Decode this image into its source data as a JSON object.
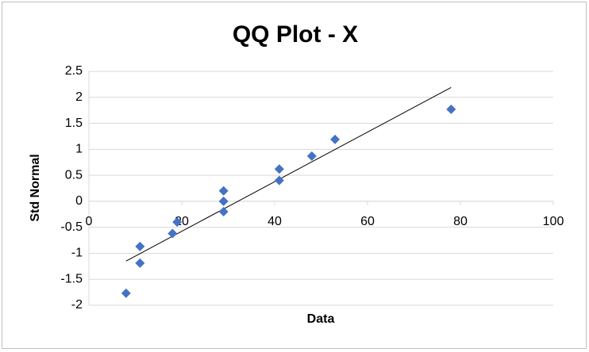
{
  "chart_data": {
    "type": "scatter",
    "title": "QQ Plot - X",
    "x_label": "Data",
    "y_label": "Std Normal",
    "series": [
      {
        "name": "X",
        "color": "#4472c4",
        "x": [
          8,
          11,
          11,
          18,
          19,
          29,
          29,
          29,
          41,
          41,
          48,
          53,
          78
        ],
        "values": [
          -1.77,
          -1.19,
          -0.87,
          -0.62,
          -0.4,
          -0.2,
          0,
          0.2,
          0.4,
          0.62,
          0.87,
          1.19,
          1.77
        ]
      }
    ],
    "trendline": {
      "color": "#000000",
      "x": [
        8,
        78
      ],
      "values": [
        -1.15,
        2.19
      ]
    },
    "xlim": [
      0,
      100
    ],
    "xticks": [
      0,
      20,
      40,
      60,
      80,
      100
    ],
    "ylim": [
      -2,
      2.5
    ],
    "yticks": [
      -2,
      -1.5,
      -1,
      -0.5,
      0,
      0.5,
      1,
      1.5,
      2,
      2.5
    ],
    "grid": true
  }
}
